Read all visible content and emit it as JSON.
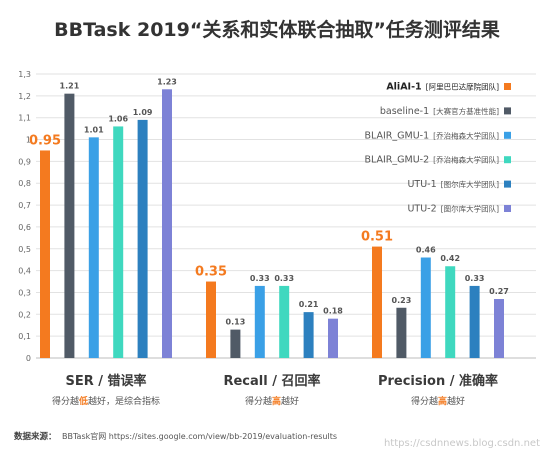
{
  "chart_data": {
    "type": "bar",
    "title": "BBTask 2019“关系和实体联合抽取”任务测评结果",
    "ylim": [
      0,
      1.3
    ],
    "yticks": [
      "0",
      "0,1",
      "0,2",
      "0,3",
      "0,4",
      "0,5",
      "0,6",
      "0,7",
      "0,8",
      "0,9",
      "1",
      "1,1",
      "1,2",
      "1,3"
    ],
    "grid": true,
    "legend_position": "top-right",
    "groups": [
      {
        "label": "SER / 错误率",
        "note_parts": [
          "得分越",
          "低",
          "越好，是综合指标"
        ]
      },
      {
        "label": "Recall / 召回率",
        "note_parts": [
          "得分越",
          "高",
          "越好"
        ]
      },
      {
        "label": "Precision / 准确率",
        "note_parts": [
          "得分越",
          "高",
          "越好"
        ]
      }
    ],
    "series": [
      {
        "name": "AliAI-1",
        "tag": "[阿里巴巴达摩院团队]",
        "color": "#f47a1f",
        "highlight": true,
        "values": [
          0.95,
          0.35,
          0.51
        ],
        "labels": [
          "0.95",
          "0.35",
          "0.51"
        ]
      },
      {
        "name": "baseline-1",
        "tag": "[大赛官方基准性能]",
        "color": "#505a66",
        "values": [
          1.21,
          0.13,
          0.23
        ],
        "labels": [
          "1.21",
          "0.13",
          "0.23"
        ]
      },
      {
        "name": "BLAIR_GMU-1",
        "tag": "[乔治梅森大学团队]",
        "color": "#3aa0e6",
        "values": [
          1.01,
          0.33,
          0.46
        ],
        "labels": [
          "1.01",
          "0.33",
          "0.46"
        ]
      },
      {
        "name": "BLAIR_GMU-2",
        "tag": "[乔治梅森大学团队]",
        "color": "#3fd8bf",
        "values": [
          1.06,
          0.33,
          0.42
        ],
        "labels": [
          "1.06",
          "0.33",
          "0.42"
        ]
      },
      {
        "name": "UTU-1",
        "tag": "[图尔库大学团队]",
        "color": "#2c80bf",
        "values": [
          1.09,
          0.21,
          0.33
        ],
        "labels": [
          "1.09",
          "0.21",
          "0.33"
        ]
      },
      {
        "name": "UTU-2",
        "tag": "[图尔库大学团队]",
        "color": "#7d82d6",
        "values": [
          1.23,
          0.18,
          0.27
        ],
        "labels": [
          "1.23",
          "0.18",
          "0.27"
        ]
      }
    ],
    "source": {
      "label": "数据来源：",
      "text": "BBTask官网 https://sites.google.com/view/bb-2019/evaluation-results"
    }
  },
  "watermark": "https://csdnnews.blog.csdn.net",
  "colors": {
    "title": "#333333",
    "axis_text": "#555555",
    "grid": "#e2e2e2",
    "accent_low": "#f47a1f",
    "accent_high": "#f47a1f"
  }
}
